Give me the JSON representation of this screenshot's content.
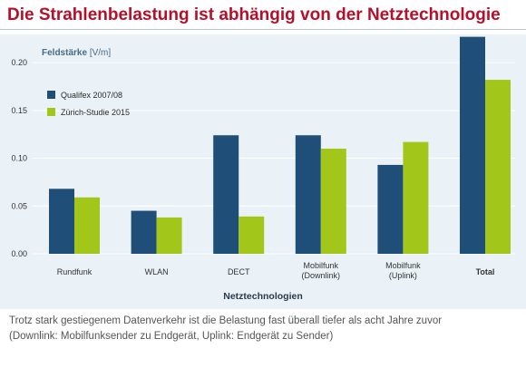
{
  "title": "Die Strahlenbelastung ist abhängig von der Netztechnologie",
  "caption": {
    "line1": "Trotz stark gestiegenem Datenverkehr ist die Belastung fast überall tiefer als acht Jahre zuvor",
    "line2": "(Downlink: Mobilfunksender zu Endgerät, Uplink: Endgerät zu Sender)"
  },
  "colors": {
    "series1": "#1f4e79",
    "series2": "#a3c61a",
    "title": "#b5102a",
    "panel": "#eaf2f7",
    "grid": "#ffffff",
    "text": "#333333"
  },
  "chart_data": {
    "type": "bar",
    "title": "Die Strahlenbelastung ist abhängig von der Netztechnologie",
    "ylabel_bold": "Feldstärke",
    "ylabel_unit": "[V/m]",
    "xlabel": "Netztechnologien",
    "ylim": [
      0,
      0.22
    ],
    "yticks": [
      "0.00",
      "0.05",
      "0.10",
      "0.15",
      "0.20"
    ],
    "grid": true,
    "legend_position": "top-left",
    "categories": [
      "Rundfunk",
      "WLAN",
      "DECT",
      "Mobilfunk\n(Downlink)",
      "Mobilfunk\n(Uplink)",
      "Total"
    ],
    "bold_category": "Total",
    "series": [
      {
        "name": "Qualifex 2007/08",
        "values": [
          0.068,
          0.045,
          0.124,
          0.124,
          0.093,
          0.227
        ]
      },
      {
        "name": "Zürich-Studie 2015",
        "values": [
          0.059,
          0.038,
          0.039,
          0.11,
          0.117,
          0.182
        ]
      }
    ]
  }
}
